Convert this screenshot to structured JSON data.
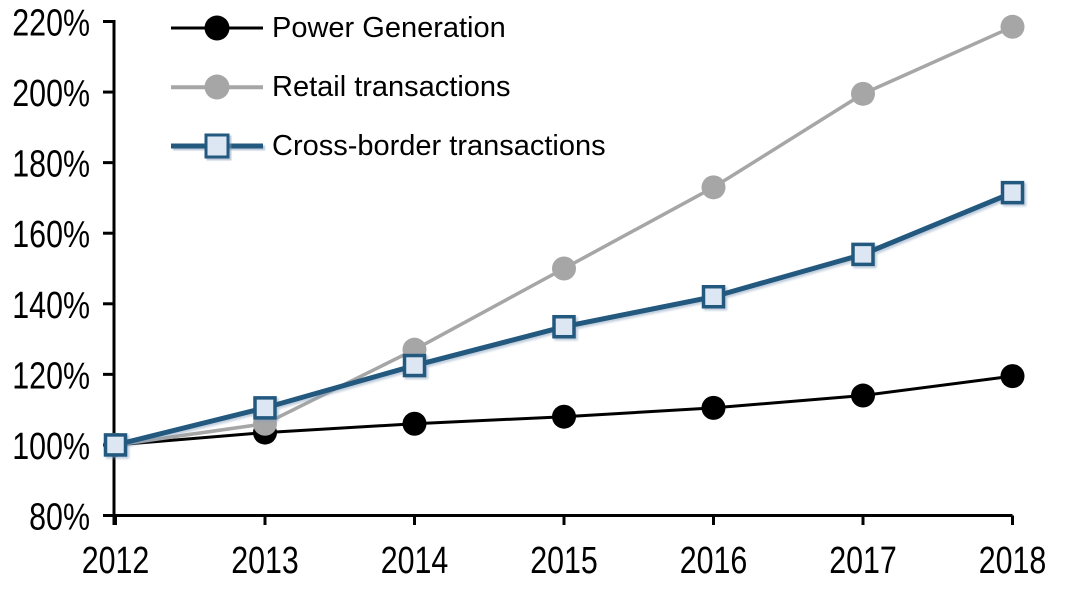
{
  "chart_data": {
    "type": "line",
    "title": "",
    "xlabel": "",
    "ylabel": "",
    "x_categories": [
      "2012",
      "2013",
      "2014",
      "2015",
      "2016",
      "2017",
      "2018"
    ],
    "y_axis": {
      "min": 80,
      "max": 220,
      "step": 20,
      "tick_labels": [
        "80%",
        "100%",
        "120%",
        "140%",
        "160%",
        "180%",
        "200%",
        "220%"
      ],
      "format": "percent-index-2012=100"
    },
    "grid": false,
    "legend_position": "top-left",
    "background_color": "#ffffff",
    "axis_color": "#000000",
    "series": [
      {
        "name": "Power Generation",
        "color": "#000000",
        "marker": "circle",
        "marker_fill": "#000000",
        "values": [
          100,
          103.5,
          106,
          108,
          110.5,
          114,
          119.5
        ]
      },
      {
        "name": "Retail transactions",
        "color": "#A6A6A6",
        "marker": "circle",
        "marker_fill": "#A6A6A6",
        "values": [
          100,
          106,
          127,
          150,
          173,
          199.5,
          218.5
        ]
      },
      {
        "name": "Cross-border transactions",
        "color": "#23587F",
        "marker": "square",
        "marker_fill": "#DCE7F3",
        "values": [
          100,
          110.5,
          122.5,
          133.5,
          142,
          154,
          171.5
        ]
      }
    ]
  }
}
